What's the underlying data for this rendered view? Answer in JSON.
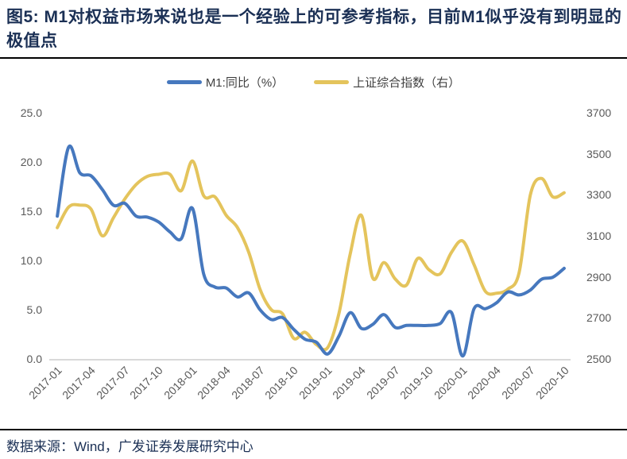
{
  "figure": {
    "title": "图5: M1对权益市场来说也是一个经验上的可参考指标，目前M1似乎没有到明显的极值点",
    "source": "数据来源：Wind，广发证券发展研究中心"
  },
  "colors": {
    "title_navy": "#1b3055",
    "m1_blue": "#4678be",
    "index_yellow": "#e4c45c",
    "axis_text": "#595959",
    "axis_line": "#d9d9d9",
    "divider": "#000000"
  },
  "chart_data": {
    "type": "line",
    "title": "",
    "grid": false,
    "legend_position": "top",
    "x": [
      "2017-01",
      "2017-02",
      "2017-03",
      "2017-04",
      "2017-05",
      "2017-06",
      "2017-07",
      "2017-08",
      "2017-09",
      "2017-10",
      "2017-11",
      "2017-12",
      "2018-01",
      "2018-02",
      "2018-03",
      "2018-04",
      "2018-05",
      "2018-06",
      "2018-07",
      "2018-08",
      "2018-09",
      "2018-10",
      "2018-11",
      "2018-12",
      "2019-01",
      "2019-02",
      "2019-03",
      "2019-04",
      "2019-05",
      "2019-06",
      "2019-07",
      "2019-08",
      "2019-09",
      "2019-10",
      "2019-11",
      "2019-12",
      "2020-01",
      "2020-02",
      "2020-03",
      "2020-04",
      "2020-05",
      "2020-06",
      "2020-07",
      "2020-08",
      "2020-09",
      "2020-10"
    ],
    "x_tick_every": 3,
    "series": [
      {
        "name": "M1:同比（%）",
        "axis": "left",
        "color_key": "m1_blue",
        "values": [
          14.5,
          21.5,
          18.9,
          18.6,
          17.2,
          15.6,
          15.8,
          14.5,
          14.4,
          13.9,
          12.9,
          12.2,
          15.3,
          8.6,
          7.3,
          7.2,
          6.3,
          6.7,
          5.0,
          4.0,
          4.2,
          3.0,
          2.0,
          1.7,
          0.5,
          2.3,
          4.7,
          3.1,
          3.5,
          4.5,
          3.2,
          3.4,
          3.4,
          3.4,
          3.6,
          4.7,
          0.3,
          5.1,
          5.1,
          5.7,
          6.8,
          6.5,
          7.0,
          8.1,
          8.3,
          9.2
        ]
      },
      {
        "name": "上证综合指数（右）",
        "axis": "right",
        "color_key": "index_yellow",
        "values": [
          3140,
          3240,
          3250,
          3230,
          3100,
          3190,
          3280,
          3350,
          3390,
          3400,
          3400,
          3320,
          3465,
          3295,
          3290,
          3200,
          3140,
          3020,
          2840,
          2740,
          2720,
          2600,
          2630,
          2570,
          2555,
          2720,
          3010,
          3200,
          2895,
          2970,
          2890,
          2860,
          2990,
          2935,
          2915,
          3020,
          3075,
          2960,
          2830,
          2820,
          2840,
          2920,
          3300,
          3380,
          3290,
          3310
        ]
      }
    ],
    "left_axis": {
      "min": 0,
      "max": 25,
      "tick_values": [
        25,
        20,
        15,
        10,
        5,
        0
      ],
      "tick_labels": [
        "25.0",
        "20.0",
        "15.0",
        "10.0",
        "5.0",
        "0.0"
      ]
    },
    "right_axis": {
      "min": 2500,
      "max": 3700,
      "tick_values": [
        3700,
        3500,
        3300,
        3100,
        2900,
        2700,
        2500
      ],
      "tick_labels": [
        "3700",
        "3500",
        "3300",
        "3100",
        "2900",
        "2700",
        "2500"
      ]
    }
  }
}
